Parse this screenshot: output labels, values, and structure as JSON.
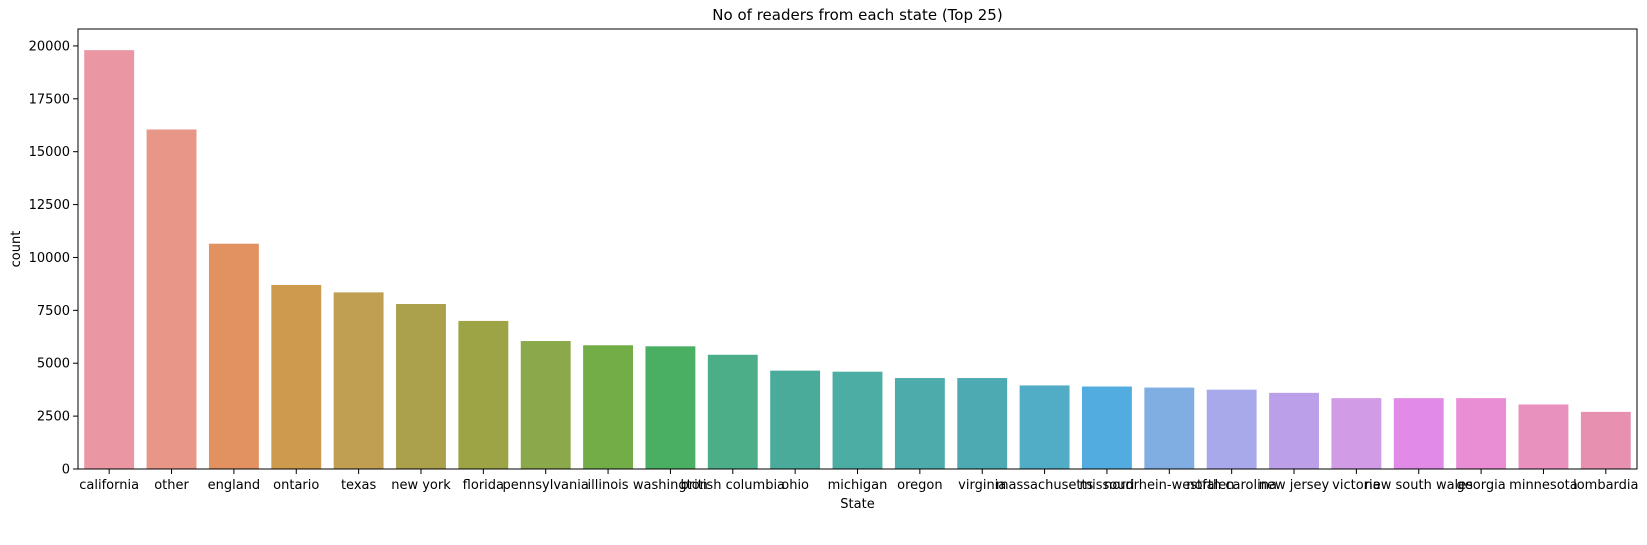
{
  "chart_data": {
    "type": "bar",
    "title": "No of readers from each state (Top 25)",
    "xlabel": "State",
    "ylabel": "count",
    "ylim": [
      0,
      20800
    ],
    "yticks": [
      0,
      2500,
      5000,
      7500,
      10000,
      12500,
      15000,
      17500,
      20000
    ],
    "grid": false,
    "categories": [
      "california",
      "other",
      "england",
      "ontario",
      "texas",
      "new york",
      "florida",
      "pennsylvania",
      "illinois",
      "washington",
      "british columbia",
      "ohio",
      "michigan",
      "oregon",
      "virginia",
      "massachusetts",
      "missouri",
      "nordrhein-westfalen",
      "north carolina",
      "new jersey",
      "victoria",
      "new south wales",
      "georgia",
      "minnesota",
      "lombardia"
    ],
    "values": [
      19800,
      16050,
      10650,
      8700,
      8350,
      7800,
      7000,
      6050,
      5850,
      5800,
      5400,
      4650,
      4600,
      4300,
      4300,
      3950,
      3900,
      3850,
      3750,
      3600,
      3350,
      3350,
      3350,
      3050,
      2700
    ],
    "colors": [
      "#ea96a3",
      "#e79688",
      "#e29160",
      "#ce9a4d",
      "#c09f52",
      "#aba04c",
      "#9ca446",
      "#8ba84a",
      "#72ad47",
      "#4aaf62",
      "#4bae89",
      "#4aab9b",
      "#4cada4",
      "#4dabab",
      "#4daab2",
      "#50adc5",
      "#53ace0",
      "#80aee3",
      "#a7a9ea",
      "#bba0e9",
      "#d19ce5",
      "#e28ae7",
      "#e98ed5",
      "#e891bf",
      "#e790b0"
    ]
  }
}
